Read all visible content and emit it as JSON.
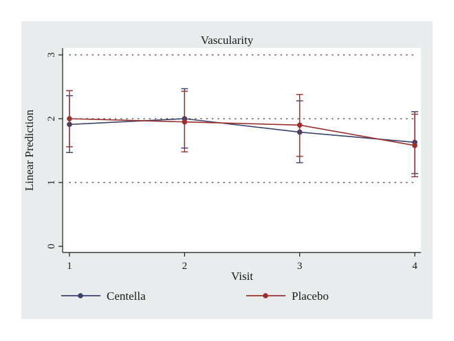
{
  "chart_data": {
    "type": "line",
    "title": "Vascularity",
    "xlabel": "Visit",
    "ylabel": "Linear Prediction",
    "x": [
      1,
      2,
      3,
      4
    ],
    "x_ticks": [
      "1",
      "2",
      "3",
      "4"
    ],
    "y_ticks": [
      "0",
      "1",
      "2",
      "3"
    ],
    "ylim": [
      0,
      3
    ],
    "xlim": [
      1,
      4
    ],
    "grid": "horizontal dotted",
    "legend_position": "bottom",
    "series": [
      {
        "name": "Centella",
        "color": "#3b3f6b",
        "values": [
          1.91,
          2.0,
          1.79,
          1.63
        ],
        "ci_low": [
          1.47,
          1.54,
          1.31,
          1.14
        ],
        "ci_high": [
          2.36,
          2.47,
          2.28,
          2.11
        ]
      },
      {
        "name": "Placebo",
        "color": "#9b2f2f",
        "values": [
          2.0,
          1.95,
          1.9,
          1.58
        ],
        "ci_low": [
          1.56,
          1.48,
          1.41,
          1.09
        ],
        "ci_high": [
          2.44,
          2.43,
          2.38,
          2.07
        ]
      }
    ]
  }
}
